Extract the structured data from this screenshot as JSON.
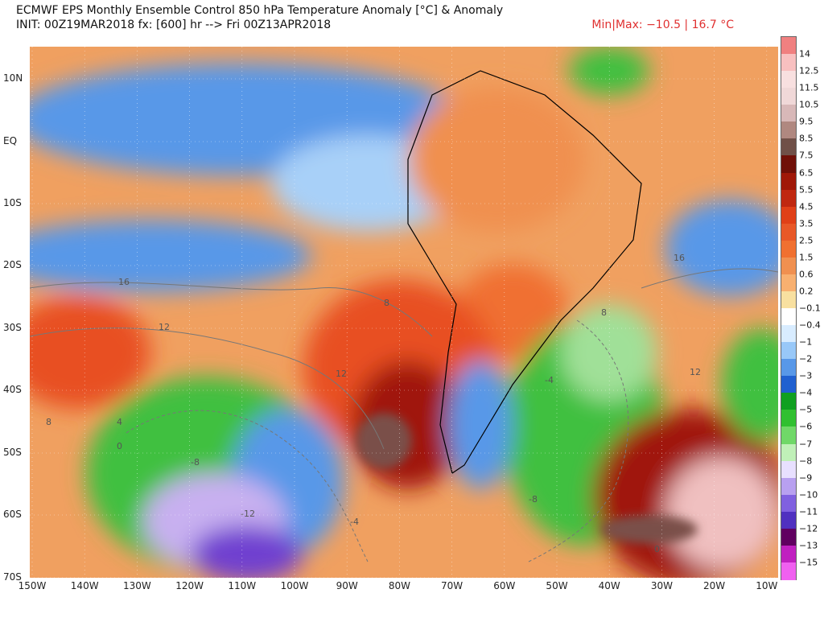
{
  "header": {
    "title": "ECMWF EPS Monthly Ensemble Control 850 hPa Temperature Anomaly [°C] & Anomaly",
    "init": "INIT: 00Z19MAR2018 fx: [600] hr --> Fri 00Z13APR2018",
    "minmax": "Min|Max: −10.5 | 16.7 °C"
  },
  "map": {
    "lat_labels": [
      "10N",
      "EQ",
      "10S",
      "20S",
      "30S",
      "40S",
      "50S",
      "60S",
      "70S"
    ],
    "lon_labels": [
      "150W",
      "140W",
      "130W",
      "120W",
      "110W",
      "100W",
      "90W",
      "80W",
      "70W",
      "60W",
      "50W",
      "40W",
      "30W",
      "20W",
      "10W"
    ],
    "contour_labels": [
      "16",
      "12",
      "8",
      "4",
      "0",
      "-4",
      "-8",
      "-12",
      "8",
      "12",
      "16",
      "0",
      "-8",
      "-4",
      "8",
      "12"
    ],
    "colors": {
      "ocean_neutral": "#f0a060",
      "warm": "#e85020",
      "hot": "#a01808",
      "extreme": "#7a5048",
      "pink": "#f0c0c0",
      "cool": "#5898e8",
      "light_blue": "#a8d0f8",
      "green": "#40c040",
      "light_green": "#a0e098",
      "lavender": "#c8b0f0",
      "purple": "#7040d0"
    }
  },
  "colorbar": {
    "labels": [
      "14",
      "12.5",
      "11.5",
      "10.5",
      "9.5",
      "8.5",
      "7.5",
      "6.5",
      "5.5",
      "4.5",
      "3.5",
      "2.5",
      "1.5",
      "0.6",
      "0.2",
      "−0.1",
      "−0.4",
      "−1",
      "−2",
      "−3",
      "−4",
      "−5",
      "−6",
      "−7",
      "−8",
      "−9",
      "−10",
      "−11",
      "−12",
      "−13",
      "−15"
    ],
    "colors": [
      "#f08080",
      "#f8c0c0",
      "#f8e0e0",
      "#f0d8d8",
      "#d8b8b8",
      "#b08880",
      "#705048",
      "#701008",
      "#a01808",
      "#c02810",
      "#e04018",
      "#e85828",
      "#f07030",
      "#f09050",
      "#f8b070",
      "#f8e0a0",
      "#ffffff",
      "#d8ecff",
      "#98c8f8",
      "#5898e8",
      "#2060d0",
      "#10a020",
      "#30c030",
      "#70d868",
      "#c0f0b8",
      "#e8e0ff",
      "#b8a0f0",
      "#8060e0",
      "#5030c0",
      "#600060",
      "#c020c0",
      "#f060f0"
    ]
  }
}
